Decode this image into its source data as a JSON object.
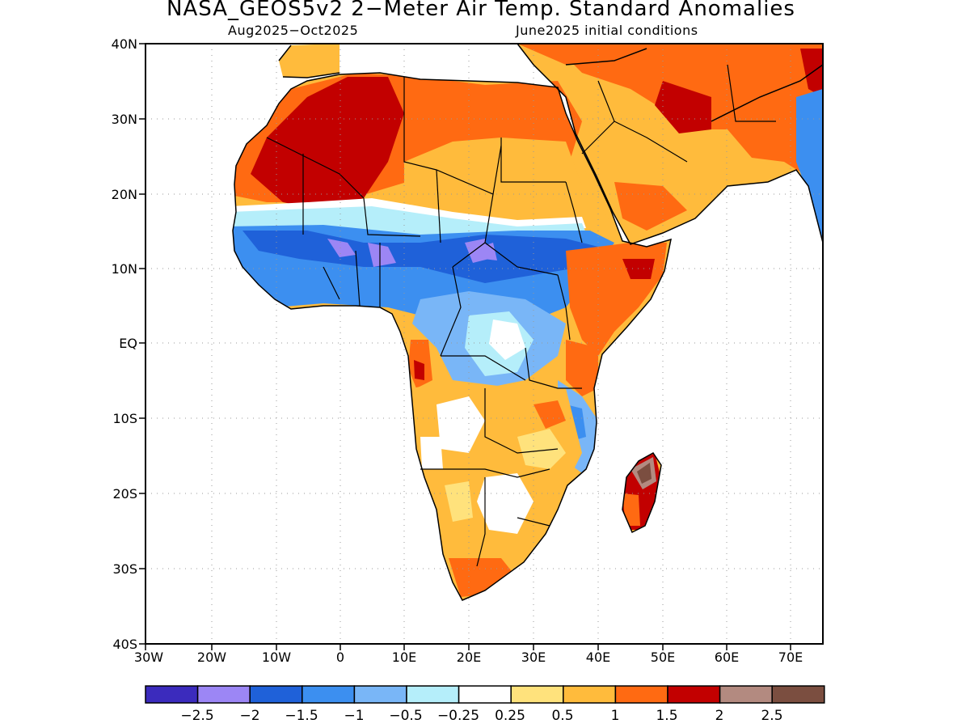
{
  "title": "NASA_GEOS5v2 2−Meter Air Temp. Standard Anomalies",
  "period": "Aug2025−Oct2025",
  "init": "June2025 initial conditions",
  "lat_ticks": [
    "40N",
    "30N",
    "20N",
    "10N",
    "EQ",
    "10S",
    "20S",
    "30S",
    "40S"
  ],
  "lon_ticks": [
    "30W",
    "20W",
    "10W",
    "0",
    "10E",
    "20E",
    "30E",
    "40E",
    "50E",
    "60E",
    "70E"
  ],
  "colorbar": {
    "colors": [
      "#3b2bbd",
      "#9c86f5",
      "#1f61d9",
      "#3c8ff0",
      "#79b6f7",
      "#b5eefa",
      "#ffffff",
      "#ffe27c",
      "#ffbb3c",
      "#ff6a12",
      "#c20000",
      "#b38a80",
      "#7b4e40"
    ],
    "labels": [
      "−2.5",
      "−2",
      "−1.5",
      "−1",
      "−0.5",
      "−0.25",
      "0.25",
      "0.5",
      "1",
      "1.5",
      "2",
      "2.5"
    ]
  }
}
